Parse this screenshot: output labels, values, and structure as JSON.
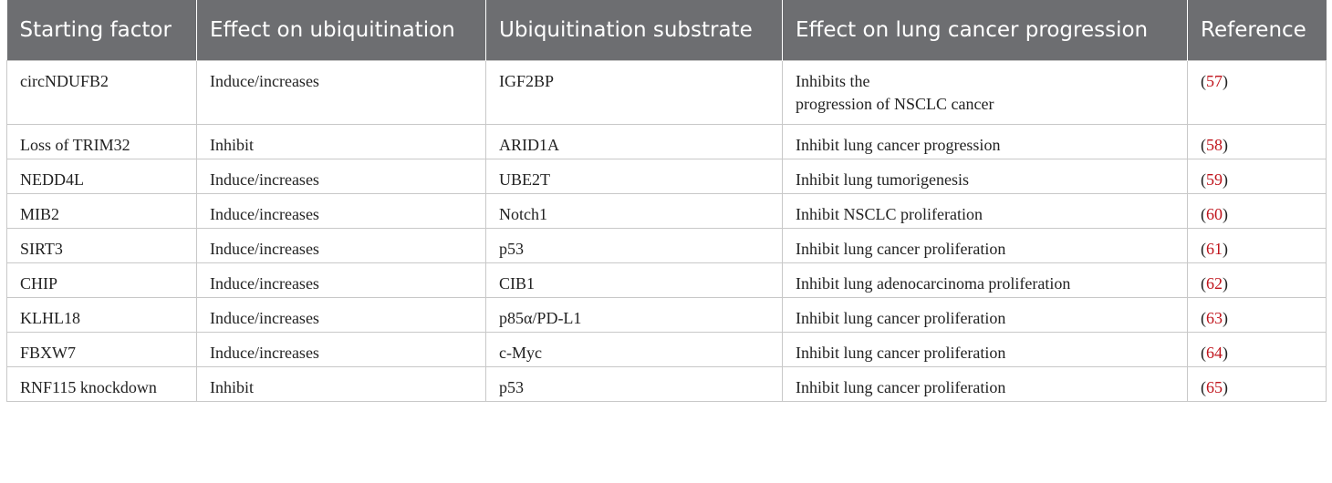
{
  "table": {
    "header": [
      "Starting factor",
      "Effect on ubiquitination",
      "Ubiquitination substrate",
      "Effect on lung cancer progression",
      "Reference"
    ],
    "rows": [
      [
        "circNDUFB2",
        "Induce/increases",
        "IGF2BP",
        "Inhibits the\nprogression of NSCLC cancer",
        "(57)"
      ],
      [
        "Loss of TRIM32",
        "Inhibit",
        "ARID1A",
        "Inhibit lung cancer progression",
        "(58)"
      ],
      [
        "NEDD4L",
        "Induce/increases",
        "UBE2T",
        "Inhibit lung tumorigenesis",
        "(59)"
      ],
      [
        "MIB2",
        "Induce/increases",
        "Notch1",
        "Inhibit NSCLC proliferation",
        "(60)"
      ],
      [
        "SIRT3",
        "Induce/increases",
        "p53",
        "Inhibit lung cancer proliferation",
        "(61)"
      ],
      [
        "CHIP",
        "Induce/increases",
        "CIB1",
        "Inhibit lung adenocarcinoma proliferation",
        "(62)"
      ],
      [
        "KLHL18",
        "Induce/increases",
        "p85α/PD-L1",
        "Inhibit lung cancer proliferation",
        "(63)"
      ],
      [
        "FBXW7",
        "Induce/increases",
        "c-Myc",
        "Inhibit lung cancer proliferation",
        "(64)"
      ],
      [
        "RNF115 knockdown",
        "Inhibit",
        "p53",
        "Inhibit lung cancer proliferation",
        "(65)"
      ]
    ]
  }
}
